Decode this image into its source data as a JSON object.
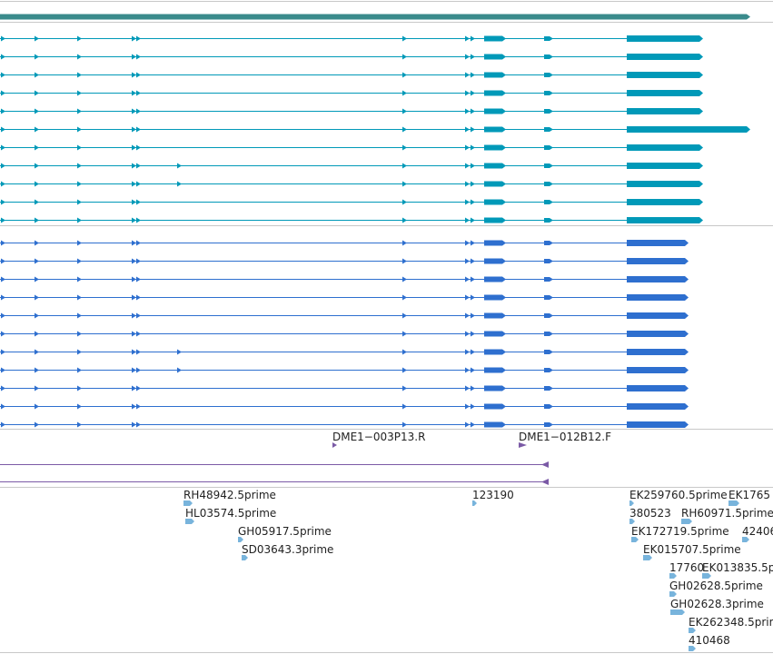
{
  "colors": {
    "gene": "#3a8b8c",
    "transcript_a": "#0099b8",
    "transcript_b": "#2e6fcf",
    "primer": "#7b5aa6",
    "est": "#78b4dc",
    "divider": "#c8c8c8"
  },
  "tracks": {
    "gene_track": {
      "name": "gene-track"
    },
    "transcripts_a": {
      "count": 11
    },
    "transcripts_b": {
      "count": 11
    },
    "primers": {
      "labels": [
        "DME1−003P13.R",
        "DME1−012B12.F"
      ]
    },
    "est": {
      "labels": [
        "RH48942.5prime",
        "HL03574.5prime",
        "GH05917.5prime",
        "SD03643.3prime",
        "123190",
        "EK259760.5prime",
        "EK1765",
        "380523",
        "RH60971.5prime",
        "EK172719.5prime",
        "42406",
        "EK015707.5prime",
        "17760",
        "EK013835.5p",
        "GH02628.5prime",
        "GH02628.3prime",
        "EK262348.5prime",
        "410468"
      ]
    }
  }
}
